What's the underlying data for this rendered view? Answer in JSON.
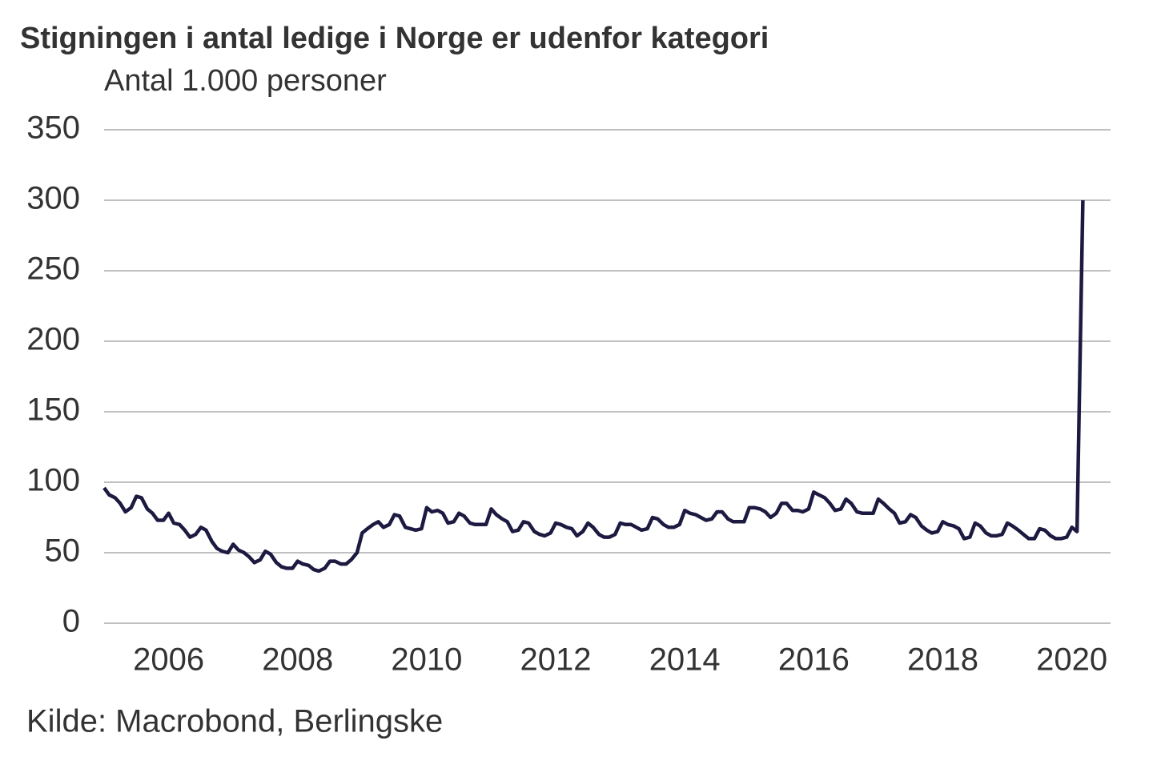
{
  "chart_data": {
    "type": "line",
    "title": "Stigningen i antal ledige i Norge er udenfor kategori",
    "subtitle": "Antal 1.000 personer",
    "source": "Kilde: Macrobond, Berlingske",
    "x": [
      2005,
      2005.08,
      2005.17,
      2005.25,
      2005.33,
      2005.42,
      2005.5,
      2005.58,
      2005.67,
      2005.75,
      2005.83,
      2005.92,
      2006,
      2006.08,
      2006.17,
      2006.25,
      2006.33,
      2006.42,
      2006.5,
      2006.58,
      2006.67,
      2006.75,
      2006.83,
      2006.92,
      2007,
      2007.08,
      2007.17,
      2007.25,
      2007.33,
      2007.42,
      2007.5,
      2007.58,
      2007.67,
      2007.75,
      2007.83,
      2007.92,
      2008,
      2008.08,
      2008.17,
      2008.25,
      2008.33,
      2008.42,
      2008.5,
      2008.58,
      2008.67,
      2008.75,
      2008.83,
      2008.92,
      2009,
      2009.08,
      2009.17,
      2009.25,
      2009.33,
      2009.42,
      2009.5,
      2009.58,
      2009.67,
      2009.75,
      2009.83,
      2009.92,
      2010,
      2010.08,
      2010.17,
      2010.25,
      2010.33,
      2010.42,
      2010.5,
      2010.58,
      2010.67,
      2010.75,
      2010.83,
      2010.92,
      2011,
      2011.08,
      2011.17,
      2011.25,
      2011.33,
      2011.42,
      2011.5,
      2011.58,
      2011.67,
      2011.75,
      2011.83,
      2011.92,
      2012,
      2012.08,
      2012.17,
      2012.25,
      2012.33,
      2012.42,
      2012.5,
      2012.58,
      2012.67,
      2012.75,
      2012.83,
      2012.92,
      2013,
      2013.08,
      2013.17,
      2013.25,
      2013.33,
      2013.42,
      2013.5,
      2013.58,
      2013.67,
      2013.75,
      2013.83,
      2013.92,
      2014,
      2014.08,
      2014.17,
      2014.25,
      2014.33,
      2014.42,
      2014.5,
      2014.58,
      2014.67,
      2014.75,
      2014.83,
      2014.92,
      2015,
      2015.08,
      2015.17,
      2015.25,
      2015.33,
      2015.42,
      2015.5,
      2015.58,
      2015.67,
      2015.75,
      2015.83,
      2015.92,
      2016,
      2016.08,
      2016.17,
      2016.25,
      2016.33,
      2016.42,
      2016.5,
      2016.58,
      2016.67,
      2016.75,
      2016.83,
      2016.92,
      2017,
      2017.08,
      2017.17,
      2017.25,
      2017.33,
      2017.42,
      2017.5,
      2017.58,
      2017.67,
      2017.75,
      2017.83,
      2017.92,
      2018,
      2018.08,
      2018.17,
      2018.25,
      2018.33,
      2018.42,
      2018.5,
      2018.58,
      2018.67,
      2018.75,
      2018.83,
      2018.92,
      2019,
      2019.08,
      2019.17,
      2019.25,
      2019.33,
      2019.42,
      2019.5,
      2019.58,
      2019.67,
      2019.75,
      2019.83,
      2019.92,
      2020,
      2020.08,
      2020.17
    ],
    "series": [
      {
        "color": "#1c1a40",
        "values": [
          96,
          91,
          89,
          85,
          79,
          82,
          90,
          89,
          81,
          78,
          73,
          73,
          78,
          71,
          70,
          66,
          61,
          63,
          68,
          66,
          58,
          53,
          51,
          50,
          56,
          52,
          50,
          47,
          43,
          45,
          51,
          49,
          43,
          40,
          39,
          39,
          44,
          42,
          41,
          38,
          37,
          39,
          44,
          44,
          42,
          42,
          45,
          50,
          64,
          67,
          70,
          72,
          68,
          70,
          77,
          76,
          68,
          67,
          66,
          67,
          82,
          79,
          80,
          78,
          71,
          72,
          78,
          76,
          71,
          70,
          70,
          70,
          81,
          77,
          74,
          72,
          65,
          66,
          72,
          71,
          65,
          63,
          62,
          64,
          71,
          70,
          68,
          67,
          62,
          65,
          71,
          68,
          63,
          61,
          61,
          63,
          71,
          70,
          70,
          68,
          66,
          67,
          75,
          74,
          70,
          68,
          68,
          70,
          80,
          78,
          77,
          75,
          73,
          74,
          79,
          79,
          74,
          72,
          72,
          72,
          82,
          82,
          81,
          79,
          75,
          78,
          85,
          85,
          80,
          80,
          79,
          81,
          93,
          91,
          89,
          85,
          80,
          81,
          88,
          85,
          79,
          78,
          78,
          78,
          88,
          85,
          81,
          78,
          71,
          72,
          77,
          75,
          69,
          66,
          64,
          65,
          72,
          70,
          69,
          67,
          60,
          61,
          71,
          69,
          64,
          62,
          62,
          63,
          71,
          69,
          66,
          63,
          60,
          60,
          67,
          66,
          62,
          60,
          60,
          61,
          68,
          65,
          300
        ]
      }
    ],
    "xlim": [
      2005,
      2020.6
    ],
    "xticks": [
      2006,
      2008,
      2010,
      2012,
      2014,
      2016,
      2018,
      2020
    ],
    "ylim": [
      0,
      350
    ],
    "yticks": [
      0,
      50,
      100,
      150,
      200,
      250,
      300,
      350
    ],
    "grid": true
  }
}
